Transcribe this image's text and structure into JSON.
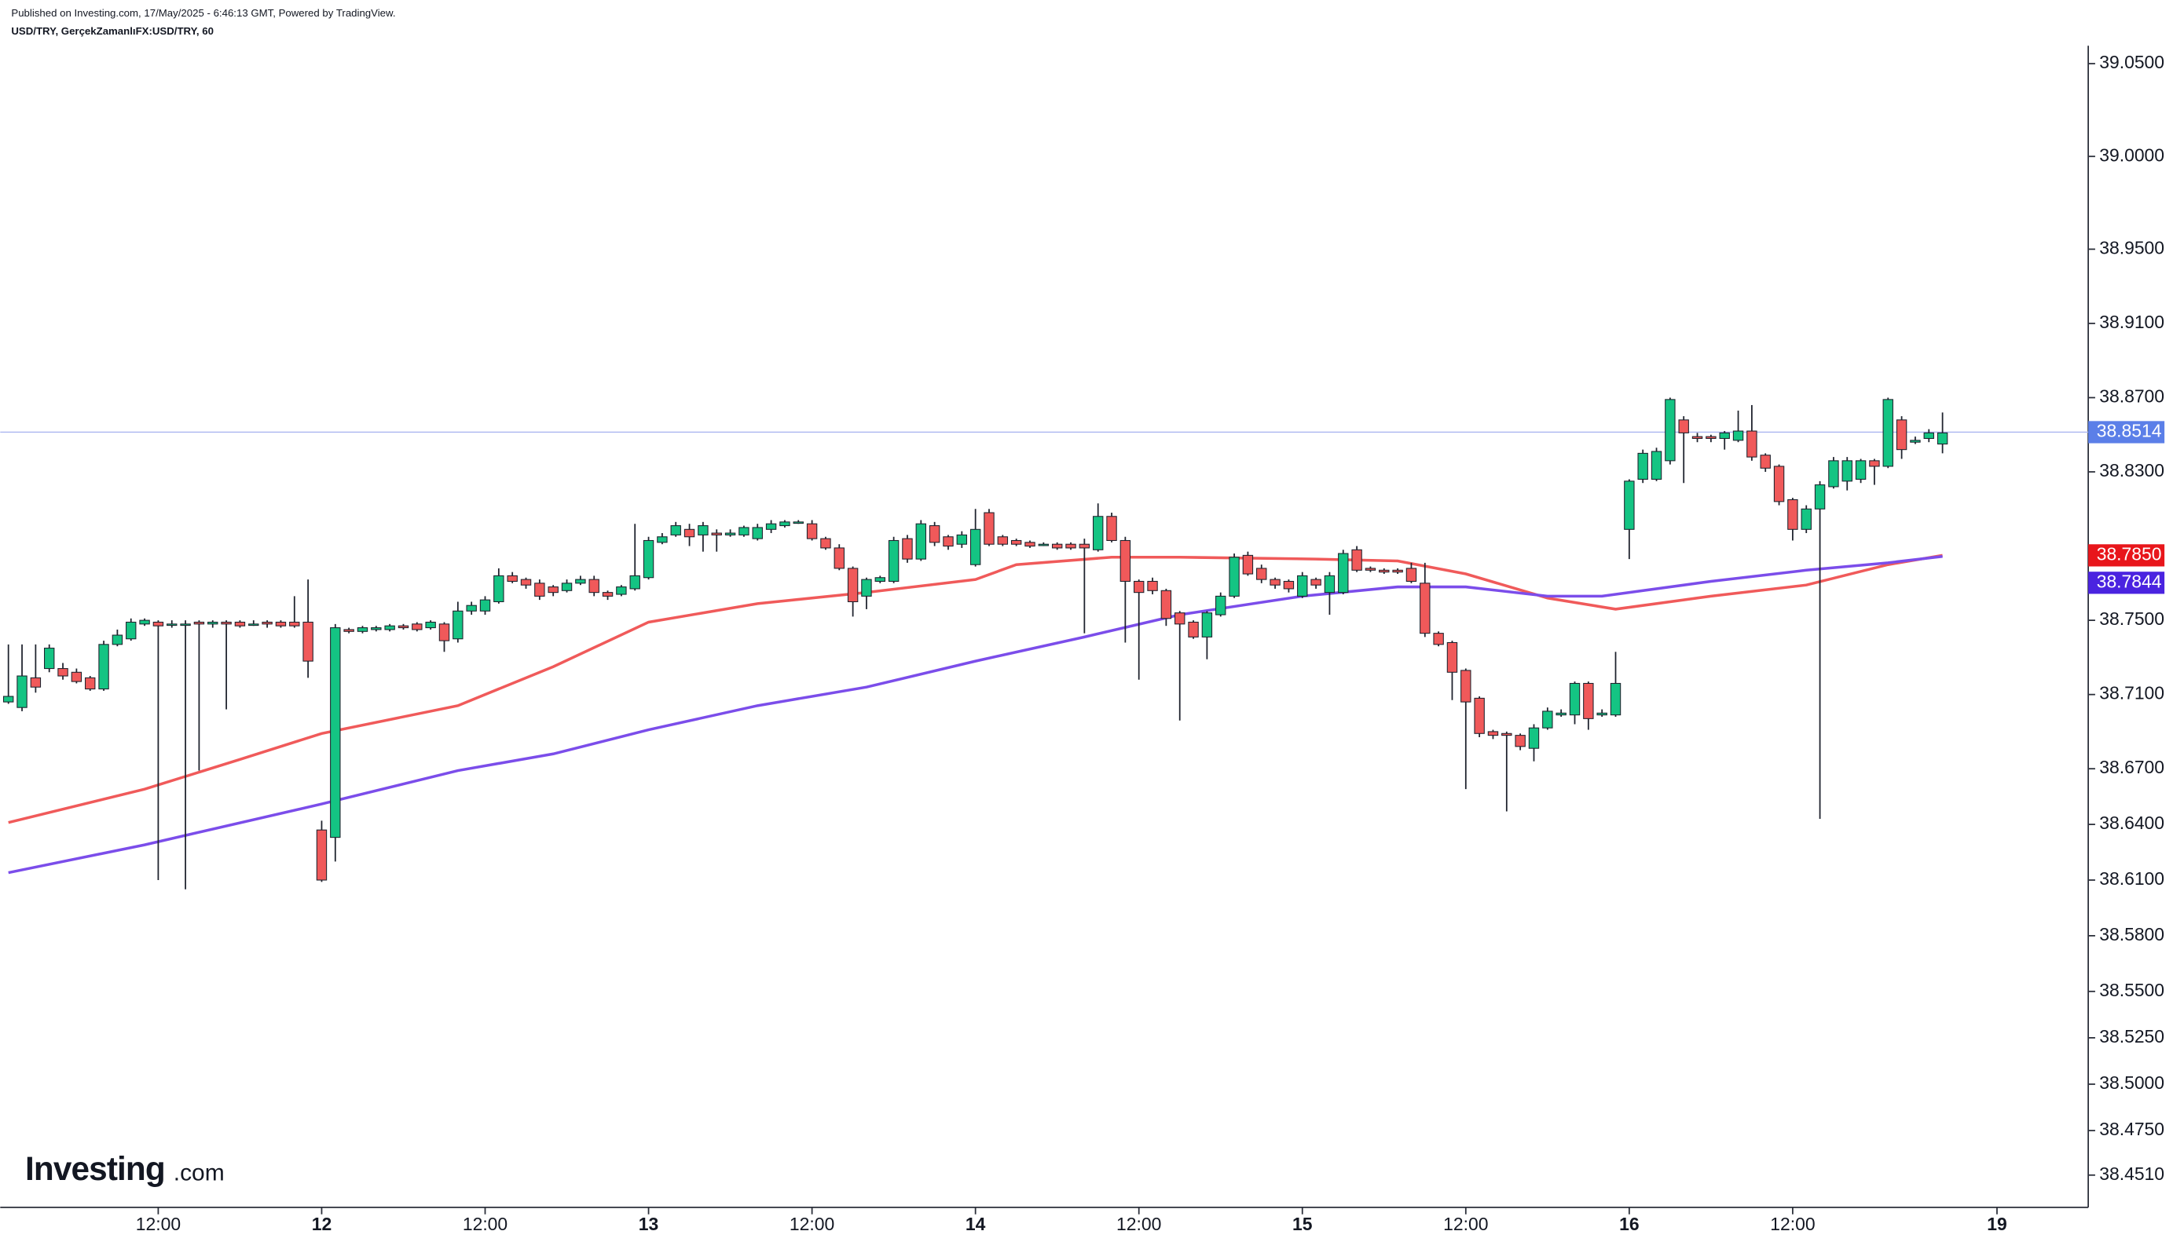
{
  "chart_data": {
    "type": "candlestick",
    "title": "Published on Investing.com, 17/May/2025 - 6:46:13 GMT, Powered by TradingView.",
    "subtitle": "USD/TRY, GerçekZamanlıFX:USD/TRY, 60",
    "logo": {
      "name": "Investing",
      "suffix": ".com"
    },
    "up_color": "#14c483",
    "down_color": "#f0595a",
    "x": [
      -23,
      -22,
      -21,
      -20,
      -19,
      -18,
      -17,
      -16,
      -15,
      -14,
      -13,
      -12,
      -11,
      -10,
      -9,
      -8,
      -7,
      -6,
      -5,
      -4,
      -3,
      -2,
      -1,
      0,
      1,
      2,
      3,
      4,
      5,
      6,
      7,
      8,
      9,
      10,
      11,
      12,
      13,
      14,
      15,
      16,
      17,
      18,
      19,
      20,
      21,
      22,
      23,
      24,
      25,
      26,
      27,
      28,
      29,
      30,
      31,
      32,
      33,
      34,
      35,
      36,
      37,
      38,
      39,
      40,
      41,
      42,
      43,
      44,
      45,
      46,
      47,
      48,
      49,
      50,
      51,
      52,
      53,
      54,
      55,
      56,
      57,
      58,
      59,
      60,
      61,
      62,
      63,
      64,
      65,
      66,
      67,
      68,
      69,
      70,
      71,
      72,
      73,
      74,
      75,
      76,
      77,
      78,
      79,
      80,
      81,
      82,
      83,
      84,
      85,
      86,
      87,
      88,
      89,
      90,
      91,
      92,
      93,
      94,
      95,
      96,
      97,
      98,
      99,
      100,
      101,
      102,
      103,
      104,
      105,
      106,
      107,
      108,
      109,
      110,
      111,
      112,
      113,
      114,
      115,
      116,
      117,
      118,
      119
    ],
    "open": [
      38.706,
      38.703,
      38.719,
      38.724,
      38.724,
      38.722,
      38.719,
      38.713,
      38.737,
      38.74,
      38.748,
      38.749,
      38.748,
      38.748,
      38.749,
      38.748,
      38.749,
      38.749,
      38.748,
      38.749,
      38.749,
      38.749,
      38.749,
      38.637,
      38.633,
      38.745,
      38.744,
      38.745,
      38.745,
      38.747,
      38.748,
      38.746,
      38.748,
      38.74,
      38.755,
      38.755,
      38.76,
      38.774,
      38.772,
      38.77,
      38.768,
      38.766,
      38.77,
      38.772,
      38.765,
      38.764,
      38.767,
      38.773,
      38.792,
      38.796,
      38.799,
      38.796,
      38.797,
      38.796,
      38.796,
      38.794,
      38.799,
      38.801,
      38.803,
      38.802,
      38.794,
      38.789,
      38.778,
      38.763,
      38.771,
      38.771,
      38.794,
      38.783,
      38.801,
      38.795,
      38.791,
      38.78,
      38.808,
      38.795,
      38.793,
      38.792,
      38.791,
      38.791,
      38.791,
      38.791,
      38.788,
      38.806,
      38.793,
      38.771,
      38.771,
      38.766,
      38.754,
      38.749,
      38.741,
      38.753,
      38.763,
      38.785,
      38.778,
      38.772,
      38.771,
      38.763,
      38.772,
      38.765,
      38.765,
      38.788,
      38.778,
      38.777,
      38.777,
      38.778,
      38.77,
      38.743,
      38.738,
      38.723,
      38.708,
      38.69,
      38.689,
      38.688,
      38.681,
      38.692,
      38.699,
      38.699,
      38.716,
      38.699,
      38.699,
      38.799,
      38.826,
      38.826,
      38.836,
      38.858,
      38.849,
      38.849,
      38.848,
      38.847,
      38.852,
      38.839,
      38.833,
      38.815,
      38.799,
      38.81,
      38.822,
      38.825,
      38.826,
      38.836,
      38.833,
      38.858,
      38.846,
      38.848,
      38.845
    ],
    "high": [
      38.737,
      38.737,
      38.737,
      38.737,
      38.727,
      38.724,
      38.72,
      38.739,
      38.745,
      38.751,
      38.751,
      38.75,
      38.75,
      38.75,
      38.75,
      38.75,
      38.75,
      38.75,
      38.75,
      38.75,
      38.75,
      38.763,
      38.772,
      38.642,
      38.748,
      38.746,
      38.747,
      38.747,
      38.748,
      38.748,
      38.749,
      38.75,
      38.749,
      38.76,
      38.76,
      38.763,
      38.778,
      38.776,
      38.773,
      38.772,
      38.769,
      38.772,
      38.774,
      38.774,
      38.766,
      38.769,
      38.802,
      38.795,
      38.797,
      38.803,
      38.802,
      38.803,
      38.799,
      38.799,
      38.801,
      38.802,
      38.804,
      38.804,
      38.804,
      38.804,
      38.795,
      38.791,
      38.779,
      38.773,
      38.774,
      38.795,
      38.796,
      38.804,
      38.803,
      38.796,
      38.798,
      38.81,
      38.81,
      38.796,
      38.794,
      38.793,
      38.792,
      38.792,
      38.792,
      38.794,
      38.813,
      38.808,
      38.795,
      38.772,
      38.773,
      38.767,
      38.755,
      38.75,
      38.755,
      38.765,
      38.786,
      38.787,
      38.78,
      38.773,
      38.772,
      38.776,
      38.773,
      38.776,
      38.788,
      38.79,
      38.779,
      38.778,
      38.778,
      38.781,
      38.781,
      38.744,
      38.739,
      38.724,
      38.709,
      38.691,
      38.69,
      38.689,
      38.694,
      38.703,
      38.702,
      38.717,
      38.717,
      38.702,
      38.733,
      38.826,
      38.842,
      38.843,
      38.87,
      38.86,
      38.851,
      38.85,
      38.852,
      38.863,
      38.866,
      38.84,
      38.834,
      38.816,
      38.812,
      38.825,
      38.838,
      38.838,
      38.837,
      38.837,
      38.87,
      38.86,
      38.849,
      38.853,
      38.862
    ],
    "low": [
      38.705,
      38.701,
      38.711,
      38.722,
      38.718,
      38.716,
      38.712,
      38.712,
      38.736,
      38.739,
      38.747,
      38.61,
      38.746,
      38.605,
      38.669,
      38.746,
      38.702,
      38.746,
      38.747,
      38.746,
      38.746,
      38.746,
      38.719,
      38.609,
      38.62,
      38.743,
      38.743,
      38.744,
      38.744,
      38.745,
      38.744,
      38.745,
      38.733,
      38.738,
      38.753,
      38.753,
      38.759,
      38.77,
      38.767,
      38.761,
      38.763,
      38.765,
      38.769,
      38.763,
      38.761,
      38.763,
      38.766,
      38.772,
      38.791,
      38.795,
      38.79,
      38.787,
      38.787,
      38.795,
      38.795,
      38.793,
      38.797,
      38.8,
      38.802,
      38.793,
      38.788,
      38.777,
      38.752,
      38.756,
      38.77,
      38.77,
      38.781,
      38.782,
      38.79,
      38.788,
      38.789,
      38.779,
      38.79,
      38.79,
      38.79,
      38.789,
      38.79,
      38.788,
      38.788,
      38.743,
      38.787,
      38.792,
      38.738,
      38.718,
      38.764,
      38.747,
      38.696,
      38.74,
      38.729,
      38.752,
      38.762,
      38.774,
      38.77,
      38.767,
      38.765,
      38.762,
      38.767,
      38.753,
      38.764,
      38.776,
      38.776,
      38.775,
      38.775,
      38.77,
      38.741,
      38.736,
      38.707,
      38.659,
      38.687,
      38.686,
      38.647,
      38.68,
      38.674,
      38.691,
      38.698,
      38.694,
      38.691,
      38.698,
      38.698,
      38.783,
      38.824,
      38.825,
      38.834,
      38.824,
      38.846,
      38.846,
      38.842,
      38.846,
      38.836,
      38.83,
      38.812,
      38.793,
      38.797,
      38.643,
      38.821,
      38.82,
      38.824,
      38.823,
      38.832,
      38.837,
      38.845,
      38.846,
      38.84
    ],
    "close": [
      38.709,
      38.72,
      38.714,
      38.735,
      38.72,
      38.717,
      38.713,
      38.737,
      38.742,
      38.749,
      38.75,
      38.747,
      38.748,
      38.748,
      38.748,
      38.749,
      38.748,
      38.747,
      38.748,
      38.748,
      38.747,
      38.747,
      38.728,
      38.61,
      38.746,
      38.744,
      38.746,
      38.746,
      38.747,
      38.746,
      38.745,
      38.749,
      38.739,
      38.755,
      38.758,
      38.761,
      38.774,
      38.771,
      38.769,
      38.763,
      38.765,
      38.77,
      38.772,
      38.765,
      38.763,
      38.768,
      38.774,
      38.793,
      38.795,
      38.801,
      38.795,
      38.801,
      38.796,
      38.797,
      38.8,
      38.8,
      38.802,
      38.803,
      38.803,
      38.794,
      38.789,
      38.778,
      38.76,
      38.772,
      38.773,
      38.793,
      38.783,
      38.802,
      38.792,
      38.79,
      38.796,
      38.799,
      38.791,
      38.791,
      38.791,
      38.79,
      38.791,
      38.789,
      38.789,
      38.789,
      38.806,
      38.793,
      38.771,
      38.765,
      38.766,
      38.751,
      38.748,
      38.741,
      38.754,
      38.763,
      38.784,
      38.775,
      38.772,
      38.769,
      38.767,
      38.774,
      38.769,
      38.774,
      38.786,
      38.777,
      38.777,
      38.776,
      38.776,
      38.771,
      38.743,
      38.737,
      38.722,
      38.706,
      38.689,
      38.688,
      38.688,
      38.682,
      38.692,
      38.701,
      38.7,
      38.716,
      38.697,
      38.7,
      38.716,
      38.825,
      38.84,
      38.841,
      38.869,
      38.851,
      38.848,
      38.848,
      38.851,
      38.852,
      38.838,
      38.832,
      38.814,
      38.799,
      38.81,
      38.823,
      38.836,
      38.836,
      38.836,
      38.833,
      38.869,
      38.842,
      38.847,
      38.851,
      38.851
    ],
    "series": [
      {
        "color": "#f05a5a",
        "x": [
          -23,
          -13,
          -6,
          0,
          10,
          17,
          24,
          32,
          40,
          48,
          51,
          58,
          63,
          73,
          79,
          84,
          90,
          95,
          102,
          109,
          115,
          119
        ],
        "values": [
          38.641,
          38.659,
          38.675,
          38.689,
          38.704,
          38.725,
          38.749,
          38.759,
          38.765,
          38.772,
          38.78,
          38.784,
          38.784,
          38.783,
          38.782,
          38.775,
          38.762,
          38.756,
          38.763,
          38.769,
          38.78,
          38.785
        ]
      },
      {
        "color": "#7b4dea",
        "x": [
          -23,
          -13,
          0,
          10,
          17,
          24,
          32,
          40,
          48,
          56,
          63,
          72,
          79,
          84,
          90,
          94,
          102,
          109,
          115,
          119
        ],
        "values": [
          38.614,
          38.629,
          38.651,
          38.669,
          38.678,
          38.691,
          38.704,
          38.714,
          38.728,
          38.741,
          38.753,
          38.763,
          38.768,
          38.768,
          38.763,
          38.763,
          38.771,
          38.777,
          38.781,
          38.7844
        ]
      }
    ],
    "price_labels": [
      {
        "value": 38.8514,
        "label": "38.8514",
        "color": "#5b7fe8"
      },
      {
        "value": 38.785,
        "label": "38.7850",
        "color": "#e8161b"
      },
      {
        "value": 38.7844,
        "label": "38.7844",
        "color": "#4a23e0"
      }
    ],
    "xlim": [
      -23.6,
      129.7
    ],
    "xticks": [
      {
        "value": -12,
        "label": "12:00"
      },
      {
        "value": 0,
        "label": "12"
      },
      {
        "value": 12,
        "label": "12:00"
      },
      {
        "value": 24,
        "label": "13"
      },
      {
        "value": 36,
        "label": "12:00"
      },
      {
        "value": 48,
        "label": "14"
      },
      {
        "value": 60,
        "label": "12:00"
      },
      {
        "value": 72,
        "label": "15"
      },
      {
        "value": 84,
        "label": "12:00"
      },
      {
        "value": 96,
        "label": "16"
      },
      {
        "value": 108,
        "label": "12:00"
      },
      {
        "value": 123,
        "label": "19"
      }
    ],
    "ylim": [
      38.4336,
      39.0843
    ],
    "yticks": [
      {
        "value": 39.05,
        "label": "39.0500"
      },
      {
        "value": 39.0,
        "label": "39.0000"
      },
      {
        "value": 38.95,
        "label": "38.9500"
      },
      {
        "value": 38.91,
        "label": "38.9100"
      },
      {
        "value": 38.87,
        "label": "38.8700"
      },
      {
        "value": 38.83,
        "label": "38.8300"
      },
      {
        "value": 38.75,
        "label": "38.7500"
      },
      {
        "value": 38.71,
        "label": "38.7100"
      },
      {
        "value": 38.67,
        "label": "38.6700"
      },
      {
        "value": 38.64,
        "label": "38.6400"
      },
      {
        "value": 38.61,
        "label": "38.6100"
      },
      {
        "value": 38.58,
        "label": "38.5800"
      },
      {
        "value": 38.55,
        "label": "38.5500"
      },
      {
        "value": 38.525,
        "label": "38.5250"
      },
      {
        "value": 38.5,
        "label": "38.5000"
      },
      {
        "value": 38.475,
        "label": "38.4750"
      },
      {
        "value": 38.451,
        "label": "38.4510"
      }
    ]
  }
}
